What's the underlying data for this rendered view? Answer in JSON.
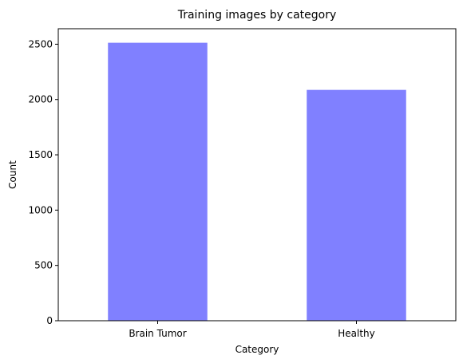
{
  "chart_data": {
    "type": "bar",
    "title": "Training images by category",
    "xlabel": "Category",
    "ylabel": "Count",
    "categories": [
      "Brain Tumor",
      "Healthy"
    ],
    "values": [
      2513,
      2087
    ],
    "ylim": [
      0,
      2640
    ],
    "yticks": [
      0,
      500,
      1000,
      1500,
      2000,
      2500
    ],
    "bar_color": "#8080ff",
    "grid": false,
    "legend": "none"
  }
}
